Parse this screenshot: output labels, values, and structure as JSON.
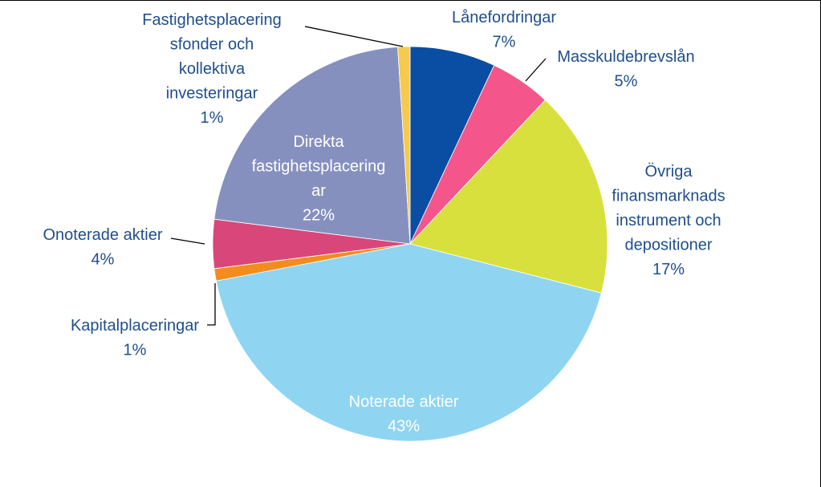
{
  "chart_data": {
    "type": "pie",
    "title": "",
    "slices": [
      {
        "lines": [
          "Lånefordringar",
          "7%"
        ],
        "value": 7,
        "color": "#0a4ea3",
        "label_color": "#1f4e8c"
      },
      {
        "lines": [
          "Masskuldebrevslån",
          "5%"
        ],
        "value": 5,
        "color": "#f4568c",
        "label_color": "#1f4e8c"
      },
      {
        "lines": [
          "Övriga",
          "finansmarknads",
          "instrument och",
          "depositioner",
          "17%"
        ],
        "value": 17,
        "color": "#d8e03d",
        "label_color": "#1f4e8c"
      },
      {
        "lines": [
          "Noterade aktier",
          "43%"
        ],
        "value": 43,
        "color": "#8fd5f2",
        "label_color": "#ffffff"
      },
      {
        "lines": [
          "Kapitalplaceringar",
          "1%"
        ],
        "value": 1,
        "color": "#f28c1f",
        "label_color": "#1f4e8c"
      },
      {
        "lines": [
          "Onoterade aktier",
          "4%"
        ],
        "value": 4,
        "color": "#d9477a",
        "label_color": "#1f4e8c"
      },
      {
        "lines": [
          "Direkta",
          "fastighetsplacering",
          "ar",
          "22%"
        ],
        "value": 22,
        "color": "#8690bf",
        "label_color": "#ffffff"
      },
      {
        "lines": [
          "Fastighetsplacering",
          "sfonder och",
          "kollektiva",
          "investeringar",
          "1%"
        ],
        "value": 1,
        "color": "#f6c94f",
        "label_color": "#1f4e8c"
      }
    ],
    "legend": "none",
    "data_labels": "outside with leader lines for small slices, inside for large slices"
  }
}
